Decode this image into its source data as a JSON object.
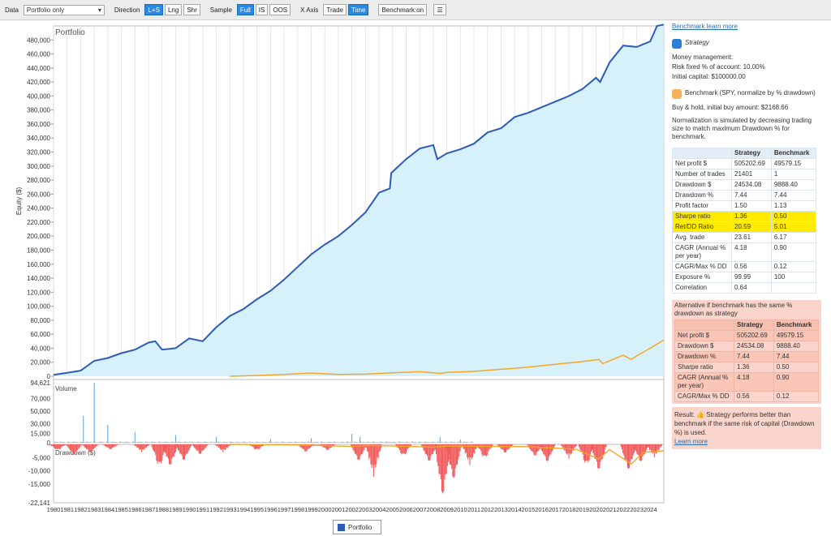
{
  "toolbar": {
    "data_label": "Data",
    "data_value": "Portfolio only",
    "direction_label": "Direction",
    "direction_options": [
      "L+S",
      "Lng",
      "Shr"
    ],
    "sample_label": "Sample",
    "sample_options": [
      "Full",
      "IS",
      "OOS"
    ],
    "xaxis_label": "X Axis",
    "xaxis_options": [
      "Trade",
      "Time"
    ],
    "benchmark_button": "Benchmark:on",
    "menu_icon": "hamburger-icon"
  },
  "chart_data": [
    {
      "type": "area",
      "title": "Portfolio",
      "ylabel": "Equity ($)",
      "ylim": [
        0,
        500000
      ],
      "yticks": [
        "0",
        "20,000",
        "40,000",
        "60,000",
        "80,000",
        "100,000",
        "120,000",
        "140,000",
        "160,000",
        "180,000",
        "200,000",
        "220,000",
        "240,000",
        "260,000",
        "280,000",
        "300,000",
        "320,000",
        "340,000",
        "360,000",
        "380,000",
        "400,000",
        "420,000",
        "440,000",
        "460,000",
        "480,000"
      ],
      "x_range": [
        1980.0,
        2025.0
      ],
      "series": [
        {
          "name": "Strategy",
          "color": "#2c5bb8",
          "x": [
            1980.0,
            1981.0,
            1982.0,
            1983.0,
            1984.0,
            1985.0,
            1986.0,
            1987.0,
            1987.5,
            1988.0,
            1989.0,
            1990.0,
            1991.0,
            1992.0,
            1993.0,
            1994.0,
            1995.0,
            1996.0,
            1997.0,
            1998.0,
            1999.0,
            2000.0,
            2001.0,
            2002.0,
            2003.0,
            2004.0,
            2004.8,
            2004.9,
            2006.0,
            2007.0,
            2008.0,
            2008.3,
            2009.0,
            2010.0,
            2011.0,
            2012.0,
            2013.0,
            2014.0,
            2015.0,
            2016.0,
            2017.0,
            2018.0,
            2019.0,
            2020.0,
            2020.3,
            2021.0,
            2022.0,
            2023.0,
            2024.0,
            2024.5,
            2025.0
          ],
          "values": [
            2000,
            5000,
            8000,
            22000,
            26000,
            33000,
            38000,
            48000,
            50000,
            38000,
            40000,
            54000,
            50000,
            70000,
            86000,
            96000,
            110000,
            122000,
            138000,
            156000,
            174000,
            188000,
            200000,
            216000,
            234000,
            262000,
            268000,
            290000,
            310000,
            325000,
            330000,
            310000,
            318000,
            324000,
            332000,
            348000,
            354000,
            370000,
            376000,
            384000,
            392000,
            400000,
            410000,
            426000,
            420000,
            448000,
            472000,
            470000,
            478000,
            500000,
            502000
          ]
        },
        {
          "name": "Benchmark (SPY, normalize by % drawdown)",
          "color": "#f5a623",
          "x": [
            1993.0,
            1995.0,
            1997.0,
            1999.0,
            2001.0,
            2003.0,
            2005.0,
            2007.0,
            2008.5,
            2009.0,
            2011.0,
            2013.0,
            2015.0,
            2017.0,
            2019.0,
            2020.2,
            2020.5,
            2022.0,
            2022.6,
            2023.0,
            2024.0,
            2025.0
          ],
          "values": [
            0,
            1000,
            2500,
            4500,
            2500,
            3000,
            5000,
            6500,
            4000,
            5500,
            7000,
            10000,
            13000,
            17000,
            21000,
            24000,
            18000,
            30000,
            24000,
            29000,
            40000,
            52000
          ]
        }
      ]
    },
    {
      "type": "bar",
      "title": "Volume",
      "ylim": [
        0,
        94621
      ],
      "yticks": [
        "0",
        "15,000",
        "30,000",
        "50,000",
        "70,000",
        "94,621"
      ],
      "spikes": [
        [
          1983.0,
          94621
        ],
        [
          1982.2,
          42000
        ],
        [
          1984.0,
          28000
        ],
        [
          1986.0,
          17000
        ],
        [
          1989.0,
          12000
        ],
        [
          1992.0,
          9000
        ],
        [
          1996.0,
          6000
        ],
        [
          1999.0,
          7000
        ],
        [
          2002.0,
          14000
        ],
        [
          2002.6,
          9000
        ],
        [
          2008.5,
          9000
        ],
        [
          2010.0,
          5000
        ]
      ]
    },
    {
      "type": "area",
      "title": "Drawdown ($)",
      "ylim": [
        -22141,
        0
      ],
      "yticks": [
        "-5,000",
        "-10,000",
        "-15,000",
        "-22,141"
      ],
      "drawdowns": [
        [
          1980.3,
          -2500
        ],
        [
          1981.5,
          -5000
        ],
        [
          1982.7,
          -3500
        ],
        [
          1984.2,
          -2000
        ],
        [
          1986.5,
          -3000
        ],
        [
          1987.8,
          -9500
        ],
        [
          1988.6,
          -10000
        ],
        [
          1989.6,
          -7000
        ],
        [
          1990.8,
          -4000
        ],
        [
          1992.5,
          -3000
        ],
        [
          1995.0,
          -2500
        ],
        [
          1998.6,
          -3500
        ],
        [
          2000.2,
          -2500
        ],
        [
          2002.5,
          -6500
        ],
        [
          2003.6,
          -12500
        ],
        [
          2005.8,
          -5000
        ],
        [
          2007.7,
          -8000
        ],
        [
          2008.7,
          -22141
        ],
        [
          2009.5,
          -14000
        ],
        [
          2010.7,
          -8000
        ],
        [
          2011.8,
          -6000
        ],
        [
          2013.3,
          -4000
        ],
        [
          2015.5,
          -5000
        ],
        [
          2016.4,
          -7000
        ],
        [
          2018.0,
          -5500
        ],
        [
          2019.3,
          -9000
        ],
        [
          2020.2,
          -12000
        ],
        [
          2022.4,
          -11000
        ],
        [
          2023.3,
          -7000
        ],
        [
          2024.3,
          -5000
        ]
      ],
      "benchmark_dd": [
        [
          1993.0,
          0
        ],
        [
          1998.0,
          -200
        ],
        [
          2002.0,
          -800
        ],
        [
          2003.0,
          -400
        ],
        [
          2008.0,
          -1000
        ],
        [
          2009.0,
          -600
        ],
        [
          2015.0,
          -900
        ],
        [
          2018.5,
          -1800
        ],
        [
          2020.2,
          -5500
        ],
        [
          2021.0,
          -2000
        ],
        [
          2022.6,
          -7400
        ],
        [
          2023.5,
          -3000
        ],
        [
          2025.0,
          -2500
        ]
      ]
    }
  ],
  "x_tick_labels": [
    "1980",
    "1981",
    "1982",
    "1983",
    "1984",
    "1985",
    "1986",
    "1987",
    "1988",
    "1989",
    "1990",
    "1991",
    "1992",
    "1993",
    "1994",
    "1995",
    "1996",
    "1997",
    "1998",
    "1999",
    "2000",
    "2001",
    "2002",
    "2003",
    "2004",
    "2005",
    "2006",
    "2007",
    "2008",
    "2009",
    "2010",
    "2011",
    "2012",
    "2013",
    "2014",
    "2015",
    "2016",
    "2017",
    "2018",
    "2019",
    "2020",
    "2021",
    "2022",
    "2023",
    "2024"
  ],
  "colors": {
    "equity_line": "#2c5bb8",
    "equity_fill": "#d6f1fa",
    "benchmark": "#f5a623",
    "drawdown": "#f05a5a",
    "volume": "#5aa0d8",
    "highlight": "#ffea00"
  },
  "panel": {
    "learn_more_top": "Benchmark learn more",
    "strategy_legend": "Strategy",
    "money_management": "Money management:",
    "risk_line": "Risk fixed % of account: 10.00%",
    "capital_line": "Initial capital: $100000.00",
    "benchmark_legend": "Benchmark (SPY, normalize by % drawdown)",
    "buy_hold_line": "Buy & hold, initial buy amount: $2168.66",
    "normalization_note": "Normalization is simulated by decreasing trading size to match maximum Drawdown % for benchmark.",
    "table1_headers": [
      "",
      "Strategy",
      "Benchmark"
    ],
    "table1_rows": [
      [
        "Net profit $",
        "505202.69",
        "49579.15"
      ],
      [
        "Number of trades",
        "21401",
        "1"
      ],
      [
        "Drawdown $",
        "24534.08",
        "9888.40"
      ],
      [
        "Drawdown %",
        "7.44",
        "7.44"
      ],
      [
        "Profit factor",
        "1.50",
        "1.13"
      ],
      [
        "Sharpe ratio",
        "1.36",
        "0.50"
      ],
      [
        "Ret/DD Ratio",
        "20.59",
        "5.01"
      ],
      [
        "Avg. trade",
        "23.61",
        "6.17"
      ],
      [
        "CAGR (Annual % per year)",
        "4.18",
        "0.90"
      ],
      [
        "CAGR/Max % DD",
        "0.56",
        "0.12"
      ],
      [
        "Exposure %",
        "99.99",
        "100"
      ],
      [
        "Correlation",
        "0.64",
        ""
      ]
    ],
    "alt_title": "Alternative if benchmark has the same % drawdown as strategy",
    "table2_headers": [
      "",
      "Strategy",
      "Benchmark"
    ],
    "table2_rows": [
      [
        "Net profit $",
        "505202.69",
        "49579.15"
      ],
      [
        "Drawdown $",
        "24534.08",
        "9888.40"
      ],
      [
        "Drawdown %",
        "7.44",
        "7.44"
      ],
      [
        "Sharpe ratio",
        "1.36",
        "0.50"
      ],
      [
        "CAGR (Annual % per year)",
        "4.18",
        "0.90"
      ],
      [
        "CAGR/Max % DD",
        "0.56",
        "0.12"
      ]
    ],
    "result_text": "Result: 👍 Strategy performs better than benchmark if the same risk of capital (Drawdown %) is used.",
    "learn_more_bottom": "Learn more"
  },
  "bottom_legend": "Portfolio"
}
